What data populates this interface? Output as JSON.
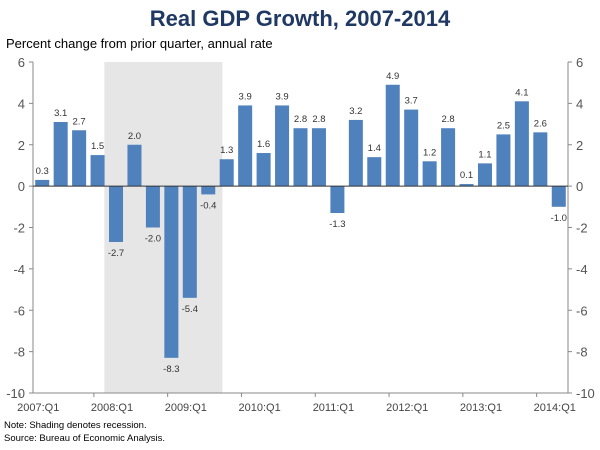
{
  "chart_data": {
    "type": "bar",
    "title": "Real GDP Growth, 2007-2014",
    "ylabel": "Percent change from prior quarter, annual rate",
    "ylim": [
      -10,
      6
    ],
    "yticks": [
      6,
      4,
      2,
      0,
      -2,
      -4,
      -6,
      -8,
      -10
    ],
    "categories": [
      "2007:Q1",
      "2007:Q2",
      "2007:Q3",
      "2007:Q4",
      "2008:Q1",
      "2008:Q2",
      "2008:Q3",
      "2008:Q4",
      "2009:Q1",
      "2009:Q2",
      "2009:Q3",
      "2009:Q4",
      "2010:Q1",
      "2010:Q2",
      "2010:Q3",
      "2010:Q4",
      "2011:Q1",
      "2011:Q2",
      "2011:Q3",
      "2011:Q4",
      "2012:Q1",
      "2012:Q2",
      "2012:Q3",
      "2012:Q4",
      "2013:Q1",
      "2013:Q2",
      "2013:Q3",
      "2013:Q4",
      "2014:Q1"
    ],
    "xticklabels": [
      "2007:Q1",
      "2008:Q1",
      "2009:Q1",
      "2010:Q1",
      "2011:Q1",
      "2012:Q1",
      "2013:Q1",
      "2014:Q1"
    ],
    "values": [
      0.3,
      3.1,
      2.7,
      1.5,
      -2.7,
      2.0,
      -2.0,
      -8.3,
      -5.4,
      -0.4,
      1.3,
      3.9,
      1.6,
      3.9,
      2.8,
      2.8,
      -1.3,
      3.2,
      1.4,
      4.9,
      3.7,
      1.2,
      2.8,
      0.1,
      1.1,
      2.5,
      4.1,
      2.6,
      -1.0
    ],
    "recession": {
      "start": "2007-12",
      "end": "2009-06"
    },
    "bar_color": "#4f81bd",
    "shade_color": "#e6e6e6",
    "grid": false
  },
  "notes": [
    "Note: Shading denotes recession.",
    "Source: Bureau of Economic Analysis."
  ]
}
